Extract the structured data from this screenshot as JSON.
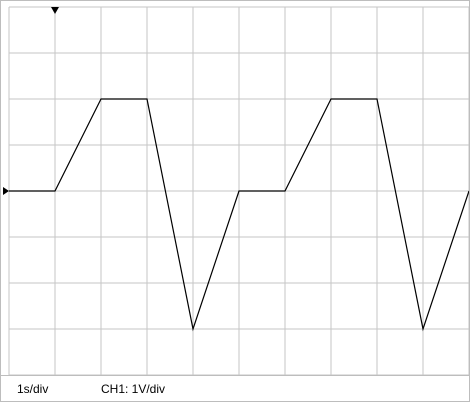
{
  "readout": {
    "timebase": "1s/div",
    "channel": "CH1: 1V/div"
  },
  "colors": {
    "grid": "#c6c6c6",
    "trace": "#000000",
    "marker": "#000000",
    "background": "#ffffff"
  },
  "chart_data": {
    "type": "line",
    "title": "",
    "xlabel": "",
    "ylabel": "",
    "time_per_div": 1,
    "volts_per_div": 1,
    "x_divisions": 10,
    "y_divisions": 8,
    "xlim": [
      0,
      10
    ],
    "ylim": [
      -4,
      4
    ],
    "grid": true,
    "trigger_marker_time": 1,
    "ground_marker_voltage": 0,
    "series": [
      {
        "x": [
          0,
          1,
          2,
          3,
          4,
          5,
          6,
          7,
          8,
          9,
          10
        ],
        "y": [
          0,
          0,
          2,
          2,
          -3,
          0,
          0,
          2,
          2,
          -3,
          0
        ]
      }
    ]
  }
}
